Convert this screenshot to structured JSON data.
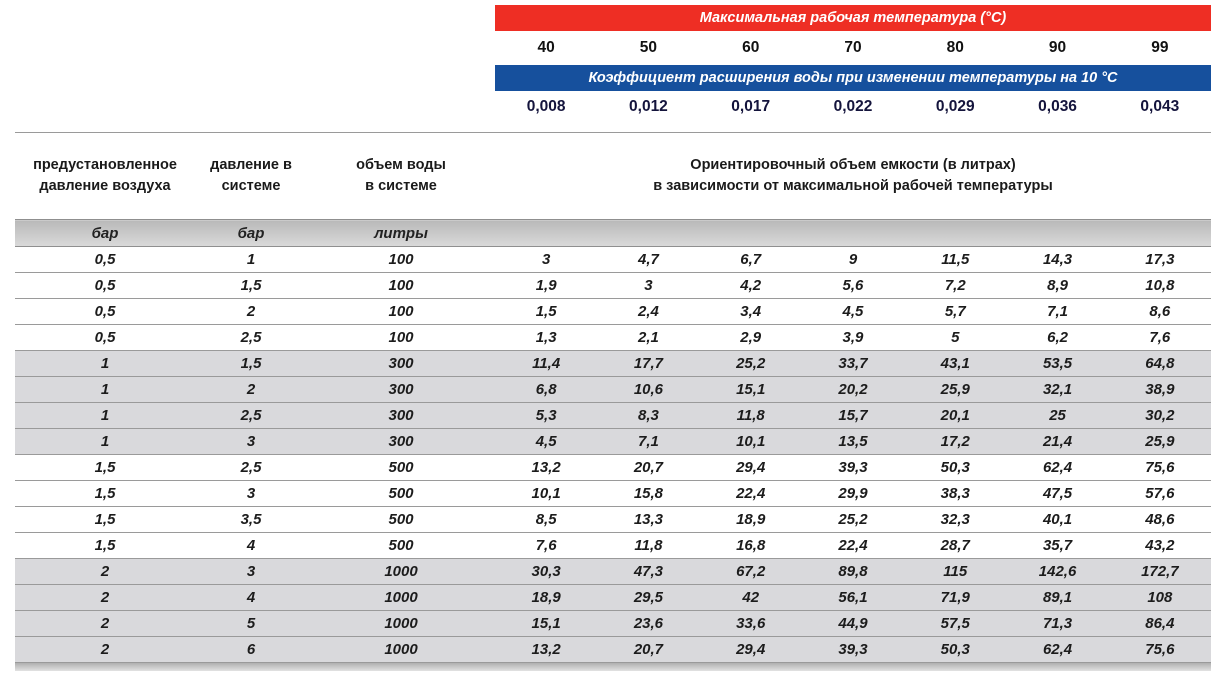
{
  "top": {
    "temp_title": "Максимальная рабочая температура (°С)",
    "temps": [
      "40",
      "50",
      "60",
      "70",
      "80",
      "90",
      "99"
    ],
    "coef_title": "Коэффициент расширения воды при изменении температуры на 10 °С",
    "coefs": [
      "0,008",
      "0,012",
      "0,017",
      "0,022",
      "0,029",
      "0,036",
      "0,043"
    ],
    "colors": {
      "red_bar": "#ee2e24",
      "blue_bar": "#16509d"
    }
  },
  "table": {
    "headers": {
      "col1": [
        "предустановленное",
        "давление воздуха"
      ],
      "col2": [
        "давление в",
        "системе"
      ],
      "col3": [
        "объем воды",
        "в системе"
      ],
      "span": [
        "Ориентировочный объем емкости (в литрах)",
        "в зависимости от максимальной рабочей температуры"
      ]
    },
    "units": [
      "бар",
      "бар",
      "литры"
    ],
    "rows": [
      [
        "0,5",
        "1",
        "100",
        "3",
        "4,7",
        "6,7",
        "9",
        "11,5",
        "14,3",
        "17,3"
      ],
      [
        "0,5",
        "1,5",
        "100",
        "1,9",
        "3",
        "4,2",
        "5,6",
        "7,2",
        "8,9",
        "10,8"
      ],
      [
        "0,5",
        "2",
        "100",
        "1,5",
        "2,4",
        "3,4",
        "4,5",
        "5,7",
        "7,1",
        "8,6"
      ],
      [
        "0,5",
        "2,5",
        "100",
        "1,3",
        "2,1",
        "2,9",
        "3,9",
        "5",
        "6,2",
        "7,6"
      ],
      [
        "1",
        "1,5",
        "300",
        "11,4",
        "17,7",
        "25,2",
        "33,7",
        "43,1",
        "53,5",
        "64,8"
      ],
      [
        "1",
        "2",
        "300",
        "6,8",
        "10,6",
        "15,1",
        "20,2",
        "25,9",
        "32,1",
        "38,9"
      ],
      [
        "1",
        "2,5",
        "300",
        "5,3",
        "8,3",
        "11,8",
        "15,7",
        "20,1",
        "25",
        "30,2"
      ],
      [
        "1",
        "3",
        "300",
        "4,5",
        "7,1",
        "10,1",
        "13,5",
        "17,2",
        "21,4",
        "25,9"
      ],
      [
        "1,5",
        "2,5",
        "500",
        "13,2",
        "20,7",
        "29,4",
        "39,3",
        "50,3",
        "62,4",
        "75,6"
      ],
      [
        "1,5",
        "3",
        "500",
        "10,1",
        "15,8",
        "22,4",
        "29,9",
        "38,3",
        "47,5",
        "57,6"
      ],
      [
        "1,5",
        "3,5",
        "500",
        "8,5",
        "13,3",
        "18,9",
        "25,2",
        "32,3",
        "40,1",
        "48,6"
      ],
      [
        "1,5",
        "4",
        "500",
        "7,6",
        "11,8",
        "16,8",
        "22,4",
        "28,7",
        "35,7",
        "43,2"
      ],
      [
        "2",
        "3",
        "1000",
        "30,3",
        "47,3",
        "67,2",
        "89,8",
        "115",
        "142,6",
        "172,7"
      ],
      [
        "2",
        "4",
        "1000",
        "18,9",
        "29,5",
        "42",
        "56,1",
        "71,9",
        "89,1",
        "108"
      ],
      [
        "2",
        "5",
        "1000",
        "15,1",
        "23,6",
        "33,6",
        "44,9",
        "57,5",
        "71,3",
        "86,4"
      ],
      [
        "2",
        "6",
        "1000",
        "13,2",
        "20,7",
        "29,4",
        "39,3",
        "50,3",
        "62,4",
        "75,6"
      ]
    ]
  }
}
